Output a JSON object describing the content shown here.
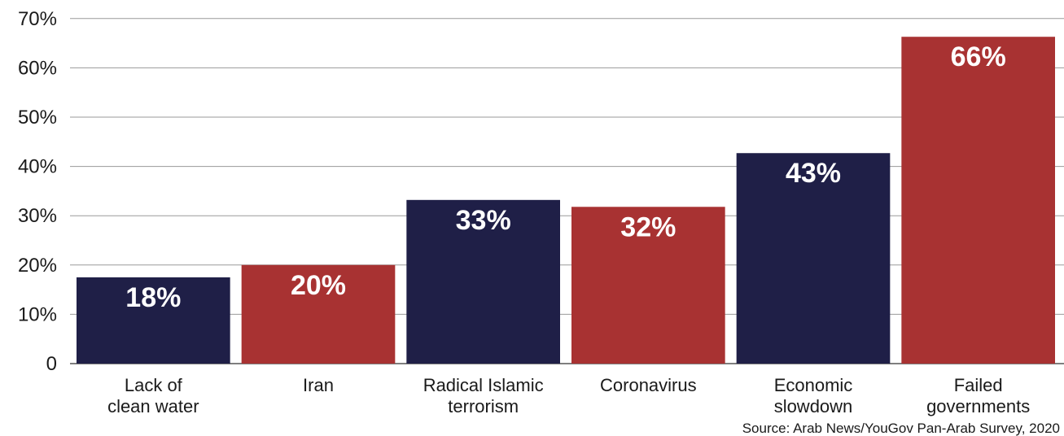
{
  "chart_data": {
    "type": "bar",
    "categories": [
      [
        "Lack of",
        "clean water"
      ],
      [
        "Iran"
      ],
      [
        "Radical Islamic",
        "terrorism"
      ],
      [
        "Coronavirus"
      ],
      [
        "Economic",
        "slowdown"
      ],
      [
        "Failed",
        "governments"
      ]
    ],
    "values": [
      17.5,
      20,
      33.2,
      31.8,
      42.7,
      66.3
    ],
    "value_labels": [
      "18%",
      "20%",
      "33%",
      "32%",
      "43%",
      "66%"
    ],
    "bar_colors": [
      "#1f1f47",
      "#a83232",
      "#1f1f47",
      "#a83232",
      "#1f1f47",
      "#a83232"
    ],
    "y_ticks": [
      {
        "value": 0,
        "label": "0"
      },
      {
        "value": 10,
        "label": "10%"
      },
      {
        "value": 20,
        "label": "20%"
      },
      {
        "value": 30,
        "label": "30%"
      },
      {
        "value": 40,
        "label": "40%"
      },
      {
        "value": 50,
        "label": "50%"
      },
      {
        "value": 60,
        "label": "60%"
      },
      {
        "value": 70,
        "label": "70%"
      }
    ],
    "ylim": [
      0,
      70
    ],
    "grid": true,
    "gridline_color": "#9a9a9a",
    "source": "Source: Arab News/YouGov Pan-Arab Survey, 2020"
  }
}
